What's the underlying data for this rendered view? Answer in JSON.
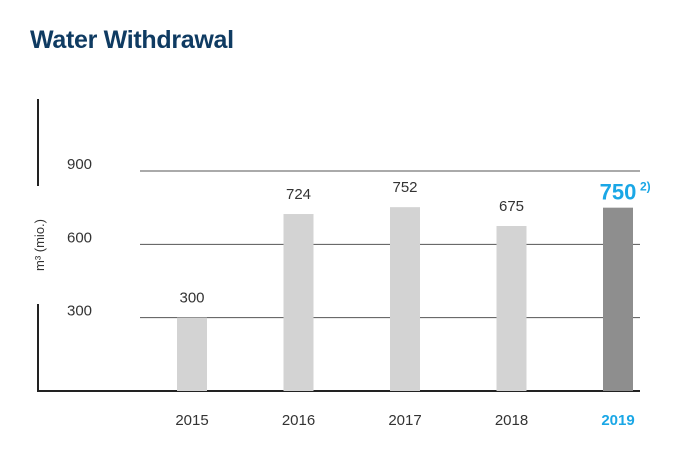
{
  "chart_data": {
    "type": "bar",
    "title": "Water Withdrawal",
    "xlabel": "",
    "ylabel": "m³ (mio.)",
    "ylim": [
      0,
      900
    ],
    "yticks": [
      300,
      600,
      900
    ],
    "grid": true,
    "categories": [
      "2015",
      "2016",
      "2017",
      "2018",
      "2019"
    ],
    "values": [
      300,
      724,
      752,
      675,
      750
    ],
    "data_labels": [
      "300",
      "724",
      "752",
      "675",
      "750"
    ],
    "highlight_index": 4,
    "highlight_footnote": "2)",
    "colors": {
      "title": "#0f3b62",
      "bar": "#d3d3d3",
      "highlight_bar": "#8e8e8e",
      "highlight_text": "#1aa7e6",
      "text": "#333333",
      "grid": "#555555"
    }
  }
}
